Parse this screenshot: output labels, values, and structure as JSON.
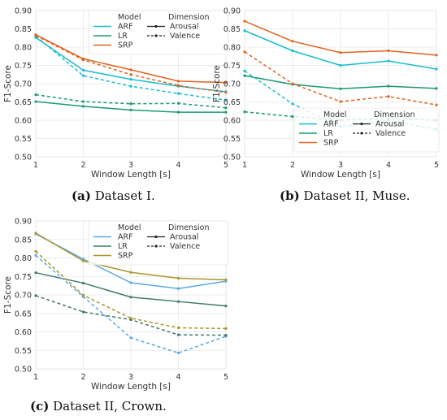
{
  "colors": {
    "ARF": "#5aa9e6",
    "LR": "#1a9a74",
    "SRP": "#e07b39"
  },
  "chart_data": [
    {
      "type": "line",
      "caption_label": "(a)",
      "caption_text": "Dataset I.",
      "xlabel": "Window Length [s]",
      "ylabel": "F1-Score",
      "x": [
        1,
        2,
        3,
        4,
        5
      ],
      "xlim": [
        1,
        5
      ],
      "ylim": [
        0.5,
        0.9
      ],
      "yticks": [
        "0.50",
        "0.55",
        "0.60",
        "0.65",
        "0.70",
        "0.75",
        "0.80",
        "0.85",
        "0.90"
      ],
      "grid": true,
      "legend_position": "upper-right",
      "legend_model_title": "Model",
      "legend_dimension_title": "Dimension",
      "legend_models": [
        "ARF",
        "LR",
        "SRP"
      ],
      "legend_dimensions": [
        "Arousal",
        "Valence"
      ],
      "model_colors": {
        "ARF": "#17becf",
        "LR": "#1a9a74",
        "SRP": "#e0631e"
      },
      "series": [
        {
          "model": "ARF",
          "dimension": "Arousal",
          "values": [
            0.826,
            0.737,
            0.712,
            0.693,
            0.678
          ]
        },
        {
          "model": "LR",
          "dimension": "Arousal",
          "values": [
            0.651,
            0.638,
            0.628,
            0.622,
            0.622
          ]
        },
        {
          "model": "SRP",
          "dimension": "Arousal",
          "values": [
            0.834,
            0.768,
            0.738,
            0.707,
            0.703
          ]
        },
        {
          "model": "ARF",
          "dimension": "Valence",
          "values": [
            0.83,
            0.722,
            0.693,
            0.673,
            0.655
          ]
        },
        {
          "model": "LR",
          "dimension": "Valence",
          "values": [
            0.67,
            0.651,
            0.645,
            0.646,
            0.634
          ]
        },
        {
          "model": "SRP",
          "dimension": "Valence",
          "values": [
            0.832,
            0.765,
            0.725,
            0.695,
            0.676
          ]
        }
      ]
    },
    {
      "type": "line",
      "caption_label": "(b)",
      "caption_text": "Dataset II, Muse.",
      "xlabel": "Window Length [s]",
      "ylabel": "F1-Score",
      "x": [
        1,
        2,
        3,
        4,
        5
      ],
      "xlim": [
        1,
        5
      ],
      "ylim": [
        0.5,
        0.9
      ],
      "yticks": [
        "0.50",
        "0.55",
        "0.60",
        "0.65",
        "0.70",
        "0.75",
        "0.80",
        "0.85",
        "0.90"
      ],
      "grid": true,
      "legend_position": "lower-right",
      "legend_model_title": "Model",
      "legend_dimension_title": "Dimension",
      "legend_models": [
        "ARF",
        "LR",
        "SRP"
      ],
      "legend_dimensions": [
        "Arousal",
        "Valence"
      ],
      "model_colors": {
        "ARF": "#17becf",
        "LR": "#1a9a74",
        "SRP": "#e0631e"
      },
      "series": [
        {
          "model": "ARF",
          "dimension": "Arousal",
          "values": [
            0.845,
            0.79,
            0.75,
            0.762,
            0.74
          ]
        },
        {
          "model": "LR",
          "dimension": "Arousal",
          "values": [
            0.722,
            0.698,
            0.686,
            0.693,
            0.687
          ]
        },
        {
          "model": "SRP",
          "dimension": "Arousal",
          "values": [
            0.871,
            0.816,
            0.785,
            0.79,
            0.778
          ]
        },
        {
          "model": "ARF",
          "dimension": "Valence",
          "values": [
            0.735,
            0.645,
            0.582,
            0.6,
            0.575
          ]
        },
        {
          "model": "LR",
          "dimension": "Valence",
          "values": [
            0.623,
            0.61,
            0.6,
            0.605,
            0.6
          ]
        },
        {
          "model": "SRP",
          "dimension": "Valence",
          "values": [
            0.787,
            0.7,
            0.651,
            0.665,
            0.642
          ]
        }
      ]
    },
    {
      "type": "line",
      "caption_label": "(c)",
      "caption_text": "Dataset II, Crown.",
      "xlabel": "Window Length [s]",
      "ylabel": "F1-Score",
      "x": [
        1,
        2,
        3,
        4,
        5
      ],
      "xlim": [
        1,
        5
      ],
      "ylim": [
        0.5,
        0.9
      ],
      "yticks": [
        "0.50",
        "0.55",
        "0.60",
        "0.65",
        "0.70",
        "0.75",
        "0.80",
        "0.85",
        "0.90"
      ],
      "grid": true,
      "legend_position": "upper-right",
      "legend_model_title": "Model",
      "legend_dimension_title": "Dimension",
      "legend_models": [
        "ARF",
        "LR",
        "SRP"
      ],
      "legend_dimensions": [
        "Arousal",
        "Valence"
      ],
      "model_colors": {
        "ARF": "#5aa9e6",
        "LR": "#3d7a6e",
        "SRP": "#a8962a"
      },
      "series": [
        {
          "model": "ARF",
          "dimension": "Arousal",
          "values": [
            0.865,
            0.797,
            0.733,
            0.717,
            0.737
          ]
        },
        {
          "model": "LR",
          "dimension": "Arousal",
          "values": [
            0.76,
            0.732,
            0.694,
            0.682,
            0.67
          ]
        },
        {
          "model": "SRP",
          "dimension": "Arousal",
          "values": [
            0.867,
            0.792,
            0.761,
            0.745,
            0.741
          ]
        },
        {
          "model": "ARF",
          "dimension": "Valence",
          "values": [
            0.807,
            0.695,
            0.584,
            0.543,
            0.588
          ]
        },
        {
          "model": "LR",
          "dimension": "Valence",
          "values": [
            0.698,
            0.654,
            0.633,
            0.592,
            0.591
          ]
        },
        {
          "model": "SRP",
          "dimension": "Valence",
          "values": [
            0.818,
            0.699,
            0.637,
            0.611,
            0.609
          ]
        }
      ]
    }
  ]
}
